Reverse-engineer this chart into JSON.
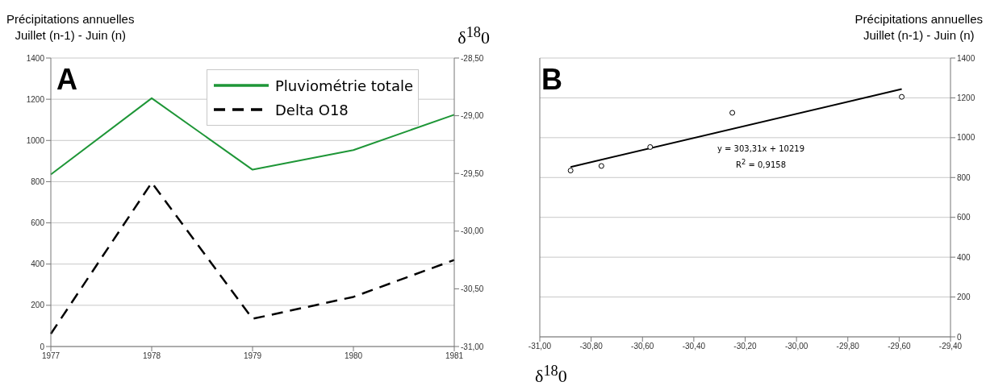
{
  "chart_data": [
    {
      "type": "line",
      "title": "A",
      "ylabel": "Précipitations annuelles\nJuillet (n-1) - Juin (n)",
      "y2label": "δ$^{18}$0",
      "categories": [
        "1977",
        "1978",
        "1979",
        "1980",
        "1981"
      ],
      "series": [
        {
          "name": "Pluviométrie totale",
          "color": "#1e9637",
          "values": [
            835,
            1205,
            858,
            953,
            1125
          ]
        },
        {
          "name": "Delta O18",
          "color": "#000000",
          "values": [
            -30.89,
            -29.58,
            -30.76,
            -30.57,
            -30.25
          ],
          "axis": "y2",
          "line_style": "dashed"
        }
      ],
      "ylim": [
        0,
        1400
      ],
      "yticks": [
        0,
        200,
        400,
        600,
        800,
        1000,
        1200,
        1400
      ],
      "y2lim": [
        -31,
        -28.5
      ],
      "y2ticks": [
        {
          "value": -31,
          "label": "-31,00"
        },
        {
          "value": -30.5,
          "label": "-30,50"
        },
        {
          "value": -30,
          "label": "-30,00"
        },
        {
          "value": -29.5,
          "label": "-29,50"
        },
        {
          "value": -29,
          "label": "-29,00"
        },
        {
          "value": -28.5,
          "label": "-28,50"
        }
      ],
      "grid": "y",
      "legend": "top",
      "marker": "none"
    },
    {
      "type": "scatter",
      "title": "B",
      "xlabel": "δ$^{18}$0",
      "y2label": "Précipitations annuelles\nJuillet (n-1) - Juin (n)",
      "series": [
        {
          "color": "#000000",
          "x": [
            -30.88,
            -30.76,
            -30.57,
            -30.25,
            -29.59
          ],
          "values": [
            835,
            858,
            953,
            1125,
            1205
          ],
          "axis": "y2",
          "marker": "circle"
        },
        {
          "type": "line",
          "color": "#000000",
          "x": [
            -30.88,
            -29.59
          ],
          "values": [
            853,
            1244
          ],
          "axis": "y2",
          "marker": "none"
        }
      ],
      "xlim": [
        -31,
        -29.4
      ],
      "xticks": [
        {
          "value": -31,
          "label": "-31,00"
        },
        {
          "value": -30.8,
          "label": "-30,80"
        },
        {
          "value": -30.6,
          "label": "-30,60"
        },
        {
          "value": -30.4,
          "label": "-30,40"
        },
        {
          "value": -30.2,
          "label": "-30,20"
        },
        {
          "value": -30,
          "label": "-30,00"
        },
        {
          "value": -29.8,
          "label": "-29,80"
        },
        {
          "value": -29.6,
          "label": "-29,60"
        },
        {
          "value": -29.4,
          "label": "-29,40"
        }
      ],
      "y2lim": [
        0,
        1400
      ],
      "y2ticks": [
        0,
        200,
        400,
        600,
        800,
        1000,
        1200,
        1400
      ],
      "annotations": [
        "y = 303,31x + 10219",
        "R$^{2}$ = 0,9158"
      ],
      "grid": "y",
      "legend": false
    }
  ]
}
